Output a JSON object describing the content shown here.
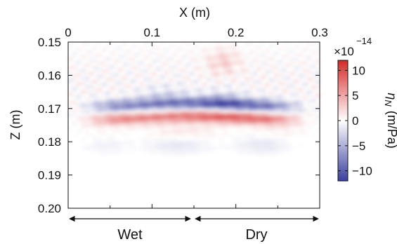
{
  "chart_data": {
    "type": "heatmap",
    "title": "",
    "xlabel": "X (m)",
    "ylabel": "Z (m)",
    "xlim": [
      0,
      0.3
    ],
    "ylim": [
      0.15,
      0.2
    ],
    "x_axis_position": "top",
    "y_axis_inverted": true,
    "x_ticks": [
      "0",
      "0.1",
      "0.2",
      "0.3"
    ],
    "x_tick_values": [
      0,
      0.1,
      0.2,
      0.3
    ],
    "y_ticks": [
      "0.15",
      "0.16",
      "0.17",
      "0.18",
      "0.19",
      "0.20"
    ],
    "y_tick_values": [
      0.15,
      0.16,
      0.17,
      0.18,
      0.19,
      0.2
    ],
    "colorbar": {
      "label_symbol": "η",
      "label_subscript": "N",
      "label_unit": "(m/Pa)",
      "scale_prefix": "×10",
      "scale_exponent": "−14",
      "range": [
        -12,
        12
      ],
      "ticks": [
        "10",
        "5",
        "0",
        "−5",
        "−10"
      ],
      "tick_values": [
        10,
        5,
        0,
        -5,
        -10
      ],
      "colormap": [
        "#3a3f9e",
        "#ffffff",
        "#d62828"
      ]
    },
    "regions": [
      {
        "label": "Wet",
        "x_range": [
          0,
          0.148
        ]
      },
      {
        "label": "Dry",
        "x_range": [
          0.152,
          0.3
        ]
      }
    ],
    "features": [
      {
        "kind": "band",
        "sign": "negative",
        "z_center": 0.1697,
        "x_range": [
          0.02,
          0.28
        ],
        "peak": -10
      },
      {
        "kind": "band",
        "sign": "positive",
        "z_center": 0.1735,
        "x_range": [
          0.02,
          0.28
        ],
        "peak": 9
      }
    ]
  }
}
